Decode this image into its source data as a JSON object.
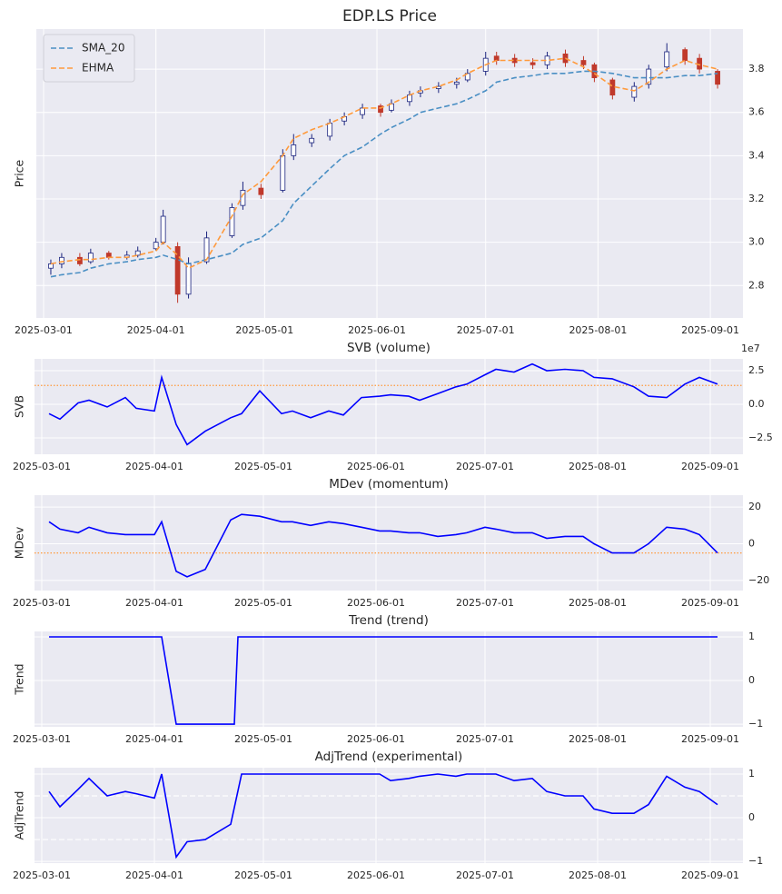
{
  "chart_data": [
    {
      "type": "candlestick",
      "title": "EDP.LS Price",
      "ylabel": "Price",
      "x": [
        "2025-03-03",
        "2025-03-06",
        "2025-03-11",
        "2025-03-14",
        "2025-03-19",
        "2025-03-24",
        "2025-03-27",
        "2025-04-01",
        "2025-04-03",
        "2025-04-07",
        "2025-04-10",
        "2025-04-15",
        "2025-04-22",
        "2025-04-25",
        "2025-04-30",
        "2025-05-06",
        "2025-05-09",
        "2025-05-14",
        "2025-05-19",
        "2025-05-23",
        "2025-05-28",
        "2025-06-02",
        "2025-06-05",
        "2025-06-10",
        "2025-06-13",
        "2025-06-18",
        "2025-06-23",
        "2025-06-26",
        "2025-07-01",
        "2025-07-04",
        "2025-07-09",
        "2025-07-14",
        "2025-07-18",
        "2025-07-23",
        "2025-07-28",
        "2025-07-31",
        "2025-08-05",
        "2025-08-11",
        "2025-08-15",
        "2025-08-20",
        "2025-08-25",
        "2025-08-29",
        "2025-09-03"
      ],
      "open": [
        2.88,
        2.9,
        2.93,
        2.91,
        2.95,
        2.93,
        2.94,
        2.97,
        3.0,
        2.98,
        2.76,
        2.91,
        3.03,
        3.17,
        3.25,
        3.24,
        3.4,
        3.46,
        3.49,
        3.56,
        3.59,
        3.63,
        3.61,
        3.65,
        3.69,
        3.71,
        3.73,
        3.75,
        3.79,
        3.86,
        3.85,
        3.83,
        3.82,
        3.87,
        3.84,
        3.82,
        3.75,
        3.67,
        3.73,
        3.81,
        3.89,
        3.85,
        3.79
      ],
      "high": [
        2.92,
        2.95,
        2.95,
        2.97,
        2.96,
        2.96,
        2.98,
        3.02,
        3.15,
        3.0,
        2.93,
        3.05,
        3.18,
        3.28,
        3.27,
        3.43,
        3.5,
        3.5,
        3.57,
        3.6,
        3.64,
        3.64,
        3.66,
        3.7,
        3.72,
        3.74,
        3.76,
        3.8,
        3.88,
        3.88,
        3.87,
        3.85,
        3.88,
        3.89,
        3.86,
        3.83,
        3.76,
        3.74,
        3.82,
        3.92,
        3.9,
        3.87,
        3.8
      ],
      "low": [
        2.85,
        2.88,
        2.89,
        2.9,
        2.92,
        2.92,
        2.93,
        2.96,
        2.99,
        2.72,
        2.74,
        2.9,
        3.02,
        3.15,
        3.2,
        3.23,
        3.38,
        3.44,
        3.47,
        3.54,
        3.57,
        3.58,
        3.6,
        3.63,
        3.67,
        3.69,
        3.71,
        3.74,
        3.77,
        3.82,
        3.81,
        3.8,
        3.8,
        3.81,
        3.8,
        3.74,
        3.66,
        3.65,
        3.71,
        3.79,
        3.82,
        3.78,
        3.71
      ],
      "close": [
        2.9,
        2.93,
        2.9,
        2.95,
        2.93,
        2.94,
        2.96,
        3.0,
        3.12,
        2.76,
        2.9,
        3.02,
        3.16,
        3.24,
        3.22,
        3.4,
        3.45,
        3.48,
        3.55,
        3.58,
        3.62,
        3.6,
        3.64,
        3.68,
        3.7,
        3.72,
        3.74,
        3.78,
        3.85,
        3.84,
        3.83,
        3.82,
        3.86,
        3.83,
        3.82,
        3.76,
        3.68,
        3.72,
        3.8,
        3.88,
        3.84,
        3.8,
        3.73
      ],
      "up_color": "#1a237e",
      "down_color": "#c0392b",
      "series": [
        {
          "name": "SMA_20",
          "color": "#4a8fc4",
          "style": "dashed",
          "values": [
            2.84,
            2.85,
            2.86,
            2.88,
            2.9,
            2.91,
            2.92,
            2.93,
            2.94,
            2.92,
            2.9,
            2.92,
            2.95,
            2.99,
            3.02,
            3.1,
            3.18,
            3.26,
            3.34,
            3.4,
            3.44,
            3.5,
            3.53,
            3.57,
            3.6,
            3.62,
            3.64,
            3.66,
            3.7,
            3.74,
            3.76,
            3.77,
            3.78,
            3.78,
            3.79,
            3.79,
            3.78,
            3.76,
            3.76,
            3.76,
            3.77,
            3.77,
            3.78
          ]
        },
        {
          "name": "EHMA",
          "color": "#ff9a3c",
          "style": "dashed",
          "values": [
            2.9,
            2.91,
            2.92,
            2.92,
            2.93,
            2.93,
            2.94,
            2.96,
            3.0,
            2.94,
            2.88,
            2.92,
            3.12,
            3.22,
            3.28,
            3.4,
            3.48,
            3.52,
            3.55,
            3.58,
            3.62,
            3.62,
            3.64,
            3.68,
            3.7,
            3.72,
            3.75,
            3.78,
            3.82,
            3.84,
            3.84,
            3.84,
            3.84,
            3.85,
            3.81,
            3.78,
            3.72,
            3.7,
            3.74,
            3.8,
            3.84,
            3.82,
            3.8
          ]
        }
      ],
      "legend": "upper left",
      "xlim": [
        "2025-02-27",
        "2025-09-10"
      ],
      "xticks": [
        "2025-03-01",
        "2025-04-01",
        "2025-05-01",
        "2025-06-01",
        "2025-07-01",
        "2025-08-01",
        "2025-09-01"
      ],
      "ylim": [
        2.65,
        3.985
      ],
      "yticks": [
        2.8,
        {
          "value": 3,
          "label": "3.0"
        },
        3.2,
        3.4,
        3.6,
        3.8
      ],
      "grid": true
    },
    {
      "type": "line",
      "title": "SVB (volume)",
      "ylabel": "SVB",
      "offset_label": "1e7",
      "x": [
        "2025-03-03",
        "2025-03-06",
        "2025-03-11",
        "2025-03-14",
        "2025-03-19",
        "2025-03-24",
        "2025-03-27",
        "2025-04-01",
        "2025-04-03",
        "2025-04-07",
        "2025-04-10",
        "2025-04-15",
        "2025-04-22",
        "2025-04-25",
        "2025-04-30",
        "2025-05-06",
        "2025-05-09",
        "2025-05-14",
        "2025-05-19",
        "2025-05-23",
        "2025-05-28",
        "2025-06-02",
        "2025-06-05",
        "2025-06-10",
        "2025-06-13",
        "2025-06-18",
        "2025-06-23",
        "2025-06-26",
        "2025-07-01",
        "2025-07-04",
        "2025-07-09",
        "2025-07-14",
        "2025-07-18",
        "2025-07-23",
        "2025-07-28",
        "2025-07-31",
        "2025-08-05",
        "2025-08-11",
        "2025-08-15",
        "2025-08-20",
        "2025-08-25",
        "2025-08-29",
        "2025-09-03"
      ],
      "values": [
        -0.7,
        -1.1,
        0.1,
        0.3,
        -0.2,
        0.5,
        -0.3,
        -0.5,
        2.0,
        -1.5,
        -3.0,
        -2.0,
        -1.0,
        -0.7,
        1.0,
        -0.7,
        -0.5,
        -1.0,
        -0.5,
        -0.8,
        0.5,
        0.6,
        0.7,
        0.6,
        0.3,
        0.8,
        1.3,
        1.5,
        2.2,
        2.6,
        2.4,
        3.0,
        2.5,
        2.6,
        2.5,
        2.0,
        1.9,
        1.3,
        0.6,
        0.5,
        1.5,
        2.0,
        1.5
      ],
      "color": "#0000ff",
      "hlines": [
        {
          "value": 1.4,
          "color": "#ff9a3c",
          "style": "dotted"
        }
      ],
      "xlim": [
        "2025-02-27",
        "2025-09-10"
      ],
      "xticks": [
        "2025-03-01",
        "2025-04-01",
        "2025-05-01",
        "2025-06-01",
        "2025-07-01",
        "2025-08-01",
        "2025-09-01"
      ],
      "ylim": [
        -3.72,
        3.38
      ],
      "yticks": [
        2.5,
        {
          "value": 0,
          "label": "0.0"
        },
        {
          "value": -2.5,
          "label": "−2.5"
        }
      ],
      "grid": true
    },
    {
      "type": "line",
      "title": "MDev (momentum)",
      "ylabel": "MDev",
      "x": [
        "2025-03-03",
        "2025-03-06",
        "2025-03-11",
        "2025-03-14",
        "2025-03-19",
        "2025-03-24",
        "2025-03-27",
        "2025-04-01",
        "2025-04-03",
        "2025-04-07",
        "2025-04-10",
        "2025-04-15",
        "2025-04-22",
        "2025-04-25",
        "2025-04-30",
        "2025-05-06",
        "2025-05-09",
        "2025-05-14",
        "2025-05-19",
        "2025-05-23",
        "2025-05-28",
        "2025-06-02",
        "2025-06-05",
        "2025-06-10",
        "2025-06-13",
        "2025-06-18",
        "2025-06-23",
        "2025-06-26",
        "2025-07-01",
        "2025-07-04",
        "2025-07-09",
        "2025-07-14",
        "2025-07-18",
        "2025-07-23",
        "2025-07-28",
        "2025-07-31",
        "2025-08-05",
        "2025-08-11",
        "2025-08-15",
        "2025-08-20",
        "2025-08-25",
        "2025-08-29",
        "2025-09-03"
      ],
      "values": [
        12,
        8,
        6,
        9,
        6,
        5,
        5,
        5,
        12,
        -15,
        -18,
        -14,
        13,
        16,
        15,
        12,
        12,
        10,
        12,
        11,
        9,
        7,
        7,
        6,
        6,
        4,
        5,
        6,
        9,
        8,
        6,
        6,
        3,
        4,
        4,
        0,
        -5,
        -5,
        0,
        9,
        8,
        5,
        -5
      ],
      "color": "#0000ff",
      "hlines": [
        {
          "value": -5,
          "color": "#ff9a3c",
          "style": "dotted"
        }
      ],
      "xlim": [
        "2025-02-27",
        "2025-09-10"
      ],
      "xticks": [
        "2025-03-01",
        "2025-04-01",
        "2025-05-01",
        "2025-06-01",
        "2025-07-01",
        "2025-08-01",
        "2025-09-01"
      ],
      "ylim": [
        -25.5,
        26.5
      ],
      "yticks": [
        20,
        0,
        {
          "value": -20,
          "label": "−20"
        }
      ],
      "grid": true
    },
    {
      "type": "line",
      "title": "Trend (trend)",
      "ylabel": "Trend",
      "x": [
        "2025-03-03",
        "2025-04-03",
        "2025-04-07",
        "2025-04-23",
        "2025-04-24",
        "2025-09-03"
      ],
      "values": [
        1,
        1,
        -1,
        -1,
        1,
        1
      ],
      "color": "#0000ff",
      "xlim": [
        "2025-02-27",
        "2025-09-10"
      ],
      "xticks": [
        "2025-03-01",
        "2025-04-01",
        "2025-05-01",
        "2025-06-01",
        "2025-07-01",
        "2025-08-01",
        "2025-09-01"
      ],
      "ylim": [
        -1.06,
        1.125
      ],
      "yticks": [
        1,
        0,
        {
          "value": -1,
          "label": "−1"
        }
      ],
      "grid": true
    },
    {
      "type": "line",
      "title": "AdjTrend (experimental)",
      "ylabel": "AdjTrend",
      "x": [
        "2025-03-03",
        "2025-03-06",
        "2025-03-11",
        "2025-03-14",
        "2025-03-19",
        "2025-03-24",
        "2025-03-27",
        "2025-04-01",
        "2025-04-03",
        "2025-04-07",
        "2025-04-10",
        "2025-04-15",
        "2025-04-22",
        "2025-04-25",
        "2025-04-30",
        "2025-05-06",
        "2025-05-09",
        "2025-05-14",
        "2025-05-19",
        "2025-05-23",
        "2025-05-28",
        "2025-06-02",
        "2025-06-05",
        "2025-06-10",
        "2025-06-13",
        "2025-06-18",
        "2025-06-23",
        "2025-06-26",
        "2025-07-01",
        "2025-07-04",
        "2025-07-09",
        "2025-07-14",
        "2025-07-18",
        "2025-07-23",
        "2025-07-28",
        "2025-07-31",
        "2025-08-05",
        "2025-08-11",
        "2025-08-15",
        "2025-08-20",
        "2025-08-25",
        "2025-08-29",
        "2025-09-03"
      ],
      "values": [
        0.6,
        0.25,
        0.65,
        0.9,
        0.5,
        0.6,
        0.55,
        0.45,
        1.0,
        -0.9,
        -0.55,
        -0.5,
        -0.15,
        1.0,
        1.0,
        1.0,
        1.0,
        1.0,
        1.0,
        1.0,
        1.0,
        1.0,
        0.85,
        0.9,
        0.95,
        1.0,
        0.95,
        1.0,
        1.0,
        1.0,
        0.85,
        0.9,
        0.6,
        0.5,
        0.5,
        0.2,
        0.1,
        0.1,
        0.3,
        0.95,
        0.7,
        0.6,
        0.3
      ],
      "color": "#0000ff",
      "hlines": [
        {
          "value": 0.5,
          "color": "#ffffff",
          "style": "dashed"
        },
        {
          "value": -0.5,
          "color": "#ffffff",
          "style": "dashed"
        }
      ],
      "xlim": [
        "2025-02-27",
        "2025-09-10"
      ],
      "xticks": [
        "2025-03-01",
        "2025-04-01",
        "2025-05-01",
        "2025-06-01",
        "2025-07-01",
        "2025-08-01",
        "2025-09-01"
      ],
      "ylim": [
        -1.04,
        1.146
      ],
      "yticks": [
        1,
        0,
        {
          "value": -1,
          "label": "−1"
        }
      ],
      "grid": true
    }
  ]
}
